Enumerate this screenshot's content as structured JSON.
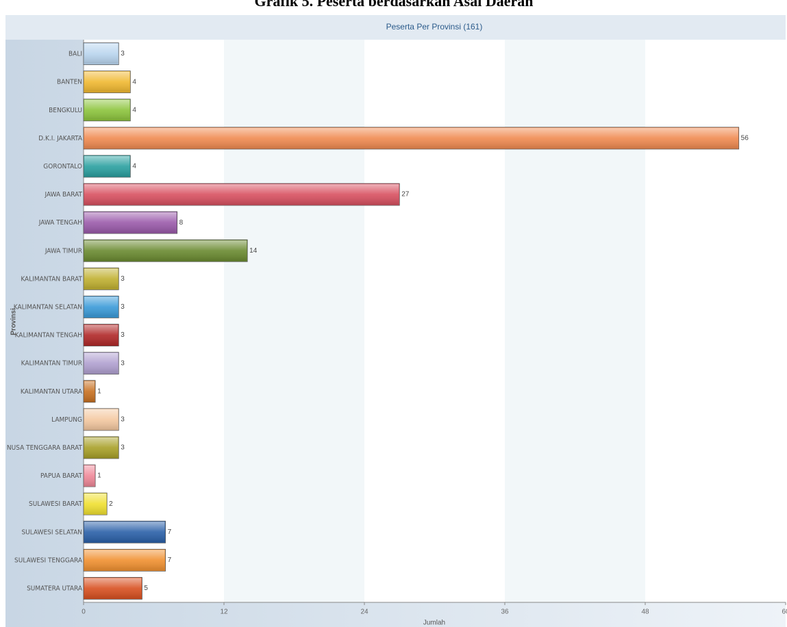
{
  "chart_data": {
    "type": "bar",
    "orientation": "horizontal",
    "page_title": "Grafik 5. Peserta berdasarkan Asal Daerah",
    "title": "Peserta Per Provinsi (161)",
    "x_label": "Jumlah",
    "y_label": "Provinsi",
    "categories": [
      "BALI",
      "BANTEN",
      "BENGKULU",
      "D.K.I. JAKARTA",
      "GORONTALO",
      "JAWA BARAT",
      "JAWA TENGAH",
      "JAWA TIMUR",
      "KALIMANTAN BARAT",
      "KALIMANTAN SELATAN",
      "KALIMANTAN TENGAH",
      "KALIMANTAN TIMUR",
      "KALIMANTAN UTARA",
      "LAMPUNG",
      "NUSA TENGGARA BARAT",
      "PAPUA BARAT",
      "SULAWESI BARAT",
      "SULAWESI SELATAN",
      "SULAWESI TENGGARA",
      "SUMATERA UTARA"
    ],
    "values": [
      3,
      4,
      4,
      56,
      4,
      27,
      8,
      14,
      3,
      3,
      3,
      3,
      1,
      3,
      3,
      1,
      2,
      7,
      7,
      5
    ],
    "colors": [
      "#b8d4ee",
      "#f0b830",
      "#8cc43c",
      "#f08a50",
      "#2aa0a0",
      "#d85060",
      "#9a5aaa",
      "#6a8a30",
      "#c0b030",
      "#3a9ad8",
      "#b02828",
      "#b0a0d0",
      "#c87020",
      "#f4c8a0",
      "#a8a028",
      "#f08898",
      "#f0e030",
      "#2a60a8",
      "#f09030",
      "#d85020"
    ],
    "xlim": [
      0,
      60
    ],
    "xticks": [
      0,
      12,
      24,
      36,
      48,
      60
    ],
    "grid": true
  }
}
